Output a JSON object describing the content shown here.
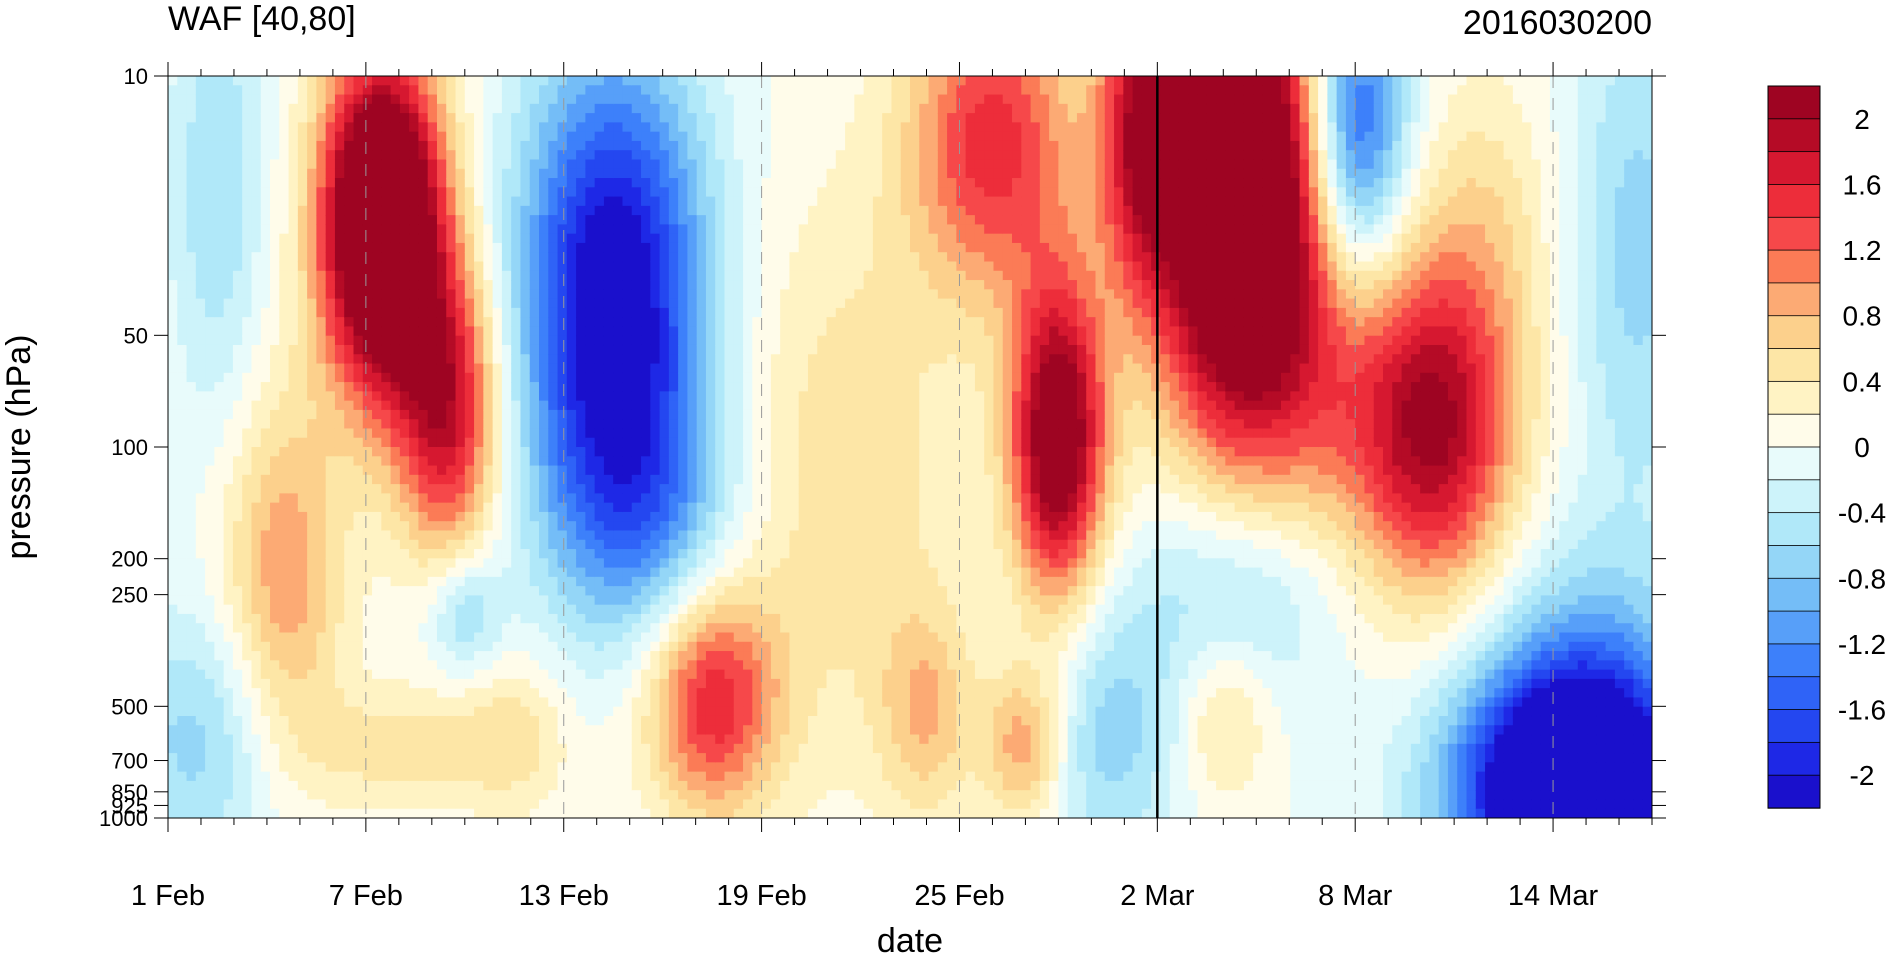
{
  "chart_data": {
    "type": "heatmap",
    "title": "WAF [40,80]",
    "right_title": "2016030200",
    "xlabel": "date",
    "ylabel": "pressure (hPa)",
    "x_ticks": [
      "1 Feb",
      "7 Feb",
      "13 Feb",
      "19 Feb",
      "25 Feb",
      "2 Mar",
      "8 Mar",
      "14 Mar"
    ],
    "x_tick_days": [
      0,
      6,
      12,
      18,
      24,
      30,
      36,
      42
    ],
    "x_range_days": [
      0,
      45
    ],
    "y_ticks": [
      "10",
      "50",
      "100",
      "200",
      "250",
      "500",
      "700",
      "850",
      "925",
      "1000"
    ],
    "y_tick_values": [
      10,
      50,
      100,
      200,
      250,
      500,
      700,
      850,
      925,
      1000
    ],
    "y_range": [
      10,
      1000
    ],
    "y_scale": "log",
    "y_inverted": true,
    "vertical_marker_label": "2 Mar",
    "colorbar": {
      "levels": [
        -2.2,
        -2,
        -1.8,
        -1.6,
        -1.4,
        -1.2,
        -1,
        -0.8,
        -0.6,
        -0.4,
        -0.2,
        0,
        0.2,
        0.4,
        0.6,
        0.8,
        1,
        1.2,
        1.4,
        1.6,
        1.8,
        2,
        2.2
      ],
      "colors": [
        "#1a10cc",
        "#1e28e6",
        "#2447f0",
        "#2f63f7",
        "#3d80fa",
        "#579ff9",
        "#74bdf7",
        "#94d6f7",
        "#b0e8f9",
        "#cdf3fa",
        "#e8fbfb",
        "#fffcea",
        "#fff3c4",
        "#fde6a6",
        "#fcd08c",
        "#fcaa74",
        "#fb7b56",
        "#f6484a",
        "#ed2d3a",
        "#d61830",
        "#b50b26",
        "#9e0422"
      ],
      "tick_labels": [
        "-2",
        "-1.6",
        "-1.2",
        "-0.8",
        "-0.4",
        "0",
        "0.4",
        "0.8",
        "1.2",
        "1.6",
        "2"
      ],
      "tick_values": [
        -2,
        -1.6,
        -1.2,
        -0.8,
        -0.4,
        0,
        0.4,
        0.8,
        1.2,
        1.6,
        2
      ]
    },
    "features": [
      {
        "name": "positive-core-early-feb",
        "x": 6.5,
        "p": 25,
        "sx": 1.3,
        "sy": 0.32,
        "a": 3.5
      },
      {
        "name": "positive-tail-early-feb",
        "x": 8.5,
        "p": 80,
        "sx": 1.1,
        "sy": 0.28,
        "a": 1.8
      },
      {
        "name": "positive-lower-4feb",
        "x": 3.5,
        "p": 230,
        "sx": 1.3,
        "sy": 0.35,
        "a": 1.0
      },
      {
        "name": "negative-core-mid-feb",
        "x": 13.5,
        "p": 40,
        "sx": 2.0,
        "sy": 0.45,
        "a": -2.4
      },
      {
        "name": "negative-tail-mid-feb",
        "x": 14.5,
        "p": 150,
        "sx": 2.0,
        "sy": 0.25,
        "a": -0.8
      },
      {
        "name": "negative-upper-1feb",
        "x": 1.5,
        "p": 20,
        "sx": 1.0,
        "sy": 0.45,
        "a": -0.6
      },
      {
        "name": "negative-low-1feb",
        "x": 1.0,
        "p": 620,
        "sx": 1.8,
        "sy": 0.25,
        "a": -0.7
      },
      {
        "name": "negative-small-9feb",
        "x": 9.0,
        "p": 280,
        "sx": 0.8,
        "sy": 0.12,
        "a": -0.7
      },
      {
        "name": "positive-low-16feb",
        "x": 16.5,
        "p": 480,
        "sx": 1.4,
        "sy": 0.22,
        "a": 1.55
      },
      {
        "name": "positive-mid-late-feb",
        "x": 20.5,
        "p": 120,
        "sx": 2.6,
        "sy": 0.55,
        "a": 0.55
      },
      {
        "name": "positive-upper-25feb",
        "x": 25.0,
        "p": 15,
        "sx": 1.8,
        "sy": 0.3,
        "a": 1.5
      },
      {
        "name": "positive-core-27feb",
        "x": 27.0,
        "p": 95,
        "sx": 1.0,
        "sy": 0.3,
        "a": 2.5
      },
      {
        "name": "positive-upper-29feb",
        "x": 29.5,
        "p": 14,
        "sx": 0.9,
        "sy": 0.3,
        "a": 1.5
      },
      {
        "name": "positive-low-26feb",
        "x": 26.0,
        "p": 640,
        "sx": 0.9,
        "sy": 0.15,
        "a": 1.0
      },
      {
        "name": "positive-low-23feb",
        "x": 23.0,
        "p": 520,
        "sx": 1.0,
        "sy": 0.2,
        "a": 0.7
      },
      {
        "name": "negative-low-28feb",
        "x": 28.5,
        "p": 600,
        "sx": 1.6,
        "sy": 0.25,
        "a": -0.7
      },
      {
        "name": "positive-core-4mar",
        "x": 32.5,
        "p": 20,
        "sx": 1.8,
        "sy": 0.45,
        "a": 3.4
      },
      {
        "name": "positive-wide-6mar",
        "x": 36.0,
        "p": 70,
        "sx": 3.0,
        "sy": 0.35,
        "a": 0.9
      },
      {
        "name": "positive-core-9mar",
        "x": 38.5,
        "p": 95,
        "sx": 1.6,
        "sy": 0.3,
        "a": 1.5
      },
      {
        "name": "negative-upper-6mar",
        "x": 36.0,
        "p": 14,
        "sx": 1.1,
        "sy": 0.3,
        "a": -1.8
      },
      {
        "name": "negative-mid-3mar",
        "x": 32.5,
        "p": 240,
        "sx": 2.2,
        "sy": 0.22,
        "a": -0.7
      },
      {
        "name": "positive-low-3mar",
        "x": 32.0,
        "p": 530,
        "sx": 1.0,
        "sy": 0.16,
        "a": 0.6
      },
      {
        "name": "negative-core-14mar",
        "x": 42.5,
        "p": 870,
        "sx": 2.5,
        "sy": 0.22,
        "a": -2.7
      },
      {
        "name": "negative-mid-14mar",
        "x": 43.0,
        "p": 560,
        "sx": 2.2,
        "sy": 0.3,
        "a": -1.2
      },
      {
        "name": "negative-upper-15mar",
        "x": 44.5,
        "p": 30,
        "sx": 1.5,
        "sy": 0.5,
        "a": -0.7
      },
      {
        "name": "positive-upper-12mar",
        "x": 40.0,
        "p": 25,
        "sx": 1.5,
        "sy": 0.3,
        "a": 0.45
      },
      {
        "name": "positive-low-8feb",
        "x": 7.0,
        "p": 650,
        "sx": 2.0,
        "sy": 0.12,
        "a": 0.5
      },
      {
        "name": "positive-low-11feb",
        "x": 10.5,
        "p": 600,
        "sx": 1.2,
        "sy": 0.15,
        "a": 0.5
      }
    ]
  }
}
